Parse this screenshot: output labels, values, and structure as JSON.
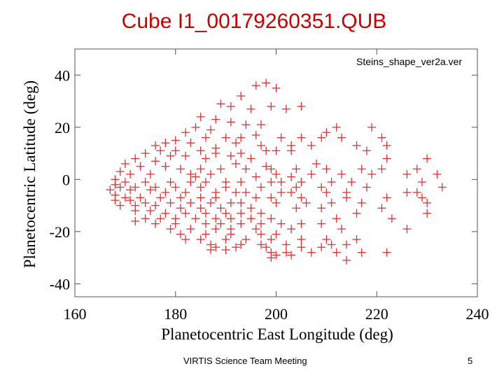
{
  "slide": {
    "title": "Cube I1_00179260351.QUB",
    "footer": "VIRTIS Science Team Meeting",
    "page_number": "5"
  },
  "chart_data": {
    "type": "scatter",
    "title": "",
    "annotation": "Steins_shape_ver2a.ver",
    "xlabel": "Planetocentric East Longitude (deg)",
    "ylabel": "Planetocentric Latitude (deg)",
    "xlim": [
      160,
      240
    ],
    "ylim": [
      -45,
      50
    ],
    "xticks": [
      160,
      180,
      200,
      220,
      240
    ],
    "yticks": [
      -40,
      -20,
      0,
      20,
      40
    ],
    "grid": false,
    "marker": "+",
    "marker_color": "#dd3333",
    "series": [
      {
        "points": [
          [
            198,
            37
          ],
          [
            196,
            36
          ],
          [
            193,
            32
          ],
          [
            200,
            35
          ],
          [
            189,
            29
          ],
          [
            191,
            28
          ],
          [
            199,
            28
          ],
          [
            205,
            28
          ],
          [
            195,
            27
          ],
          [
            202,
            27
          ],
          [
            185,
            24
          ],
          [
            188,
            23
          ],
          [
            191,
            22
          ],
          [
            194,
            21
          ],
          [
            197,
            21
          ],
          [
            184,
            20
          ],
          [
            187,
            19
          ],
          [
            212,
            20
          ],
          [
            219,
            20
          ],
          [
            210,
            18
          ],
          [
            182,
            18
          ],
          [
            186,
            16
          ],
          [
            190,
            16
          ],
          [
            193,
            16
          ],
          [
            196,
            17
          ],
          [
            201,
            16
          ],
          [
            205,
            16
          ],
          [
            209,
            16
          ],
          [
            213,
            16
          ],
          [
            221,
            16
          ],
          [
            180,
            15
          ],
          [
            183,
            14
          ],
          [
            178,
            14
          ],
          [
            176,
            13
          ],
          [
            192,
            14
          ],
          [
            197,
            13
          ],
          [
            203,
            13
          ],
          [
            207,
            13
          ],
          [
            216,
            13
          ],
          [
            222,
            13
          ],
          [
            177,
            11
          ],
          [
            180,
            11
          ],
          [
            185,
            11
          ],
          [
            188,
            10
          ],
          [
            193,
            10
          ],
          [
            198,
            11
          ],
          [
            200,
            11
          ],
          [
            203,
            11
          ],
          [
            218,
            11
          ],
          [
            188,
            12
          ],
          [
            174,
            10
          ],
          [
            179,
            9
          ],
          [
            182,
            9
          ],
          [
            191,
            9
          ],
          [
            195,
            8
          ],
          [
            222,
            8
          ],
          [
            230,
            8
          ],
          [
            186,
            8
          ],
          [
            172,
            8
          ],
          [
            176,
            7
          ],
          [
            170,
            6
          ],
          [
            173,
            5
          ],
          [
            178,
            5
          ],
          [
            181,
            4
          ],
          [
            185,
            4
          ],
          [
            189,
            4
          ],
          [
            194,
            4
          ],
          [
            199,
            4
          ],
          [
            204,
            4
          ],
          [
            210,
            4
          ],
          [
            217,
            4
          ],
          [
            221,
            4
          ],
          [
            228,
            4
          ],
          [
            192,
            6
          ],
          [
            198,
            5
          ],
          [
            208,
            6
          ],
          [
            169,
            3
          ],
          [
            171,
            2
          ],
          [
            175,
            2
          ],
          [
            184,
            1
          ],
          [
            187,
            2
          ],
          [
            196,
            1
          ],
          [
            200,
            2
          ],
          [
            203,
            1
          ],
          [
            207,
            2
          ],
          [
            213,
            2
          ],
          [
            219,
            2
          ],
          [
            226,
            2
          ],
          [
            232,
            2
          ],
          [
            183,
            2
          ],
          [
            168,
            0
          ],
          [
            170,
            -1
          ],
          [
            174,
            -1
          ],
          [
            179,
            -1
          ],
          [
            183,
            -1
          ],
          [
            186,
            -1
          ],
          [
            190,
            -1
          ],
          [
            193,
            -1
          ],
          [
            199,
            -1
          ],
          [
            201,
            -1
          ],
          [
            205,
            -1
          ],
          [
            211,
            -1
          ],
          [
            215,
            -1
          ],
          [
            229,
            -1
          ],
          [
            168,
            -2
          ],
          [
            169,
            -3
          ],
          [
            172,
            -3
          ],
          [
            176,
            -3
          ],
          [
            180,
            -3
          ],
          [
            185,
            -3
          ],
          [
            190,
            -3
          ],
          [
            197,
            -3
          ],
          [
            204,
            -3
          ],
          [
            209,
            -3
          ],
          [
            218,
            -3
          ],
          [
            233,
            -3
          ],
          [
            167,
            -4
          ],
          [
            171,
            -4
          ],
          [
            175,
            -4
          ],
          [
            178,
            -5
          ],
          [
            182,
            -5
          ],
          [
            188,
            -5
          ],
          [
            192,
            -5
          ],
          [
            194,
            -5
          ],
          [
            201,
            -5
          ],
          [
            203,
            -5
          ],
          [
            210,
            -5
          ],
          [
            214,
            -5
          ],
          [
            226,
            -5
          ],
          [
            228,
            -5
          ],
          [
            168,
            -6
          ],
          [
            170,
            -7
          ],
          [
            173,
            -7
          ],
          [
            177,
            -7
          ],
          [
            181,
            -7
          ],
          [
            185,
            -7
          ],
          [
            188,
            -7
          ],
          [
            196,
            -7
          ],
          [
            199,
            -7
          ],
          [
            205,
            -7
          ],
          [
            214,
            -7
          ],
          [
            222,
            -7
          ],
          [
            229,
            -7
          ],
          [
            168,
            -8
          ],
          [
            171,
            -8
          ],
          [
            174,
            -9
          ],
          [
            179,
            -9
          ],
          [
            183,
            -9
          ],
          [
            187,
            -9
          ],
          [
            191,
            -9
          ],
          [
            193,
            -9
          ],
          [
            200,
            -9
          ],
          [
            206,
            -9
          ],
          [
            211,
            -9
          ],
          [
            217,
            -9
          ],
          [
            230,
            -9
          ],
          [
            169,
            -10
          ],
          [
            172,
            -10
          ],
          [
            176,
            -10
          ],
          [
            181,
            -11
          ],
          [
            185,
            -11
          ],
          [
            189,
            -11
          ],
          [
            195,
            -11
          ],
          [
            204,
            -11
          ],
          [
            209,
            -11
          ],
          [
            221,
            -11
          ],
          [
            172,
            -12
          ],
          [
            175,
            -12
          ],
          [
            178,
            -13
          ],
          [
            182,
            -13
          ],
          [
            186,
            -13
          ],
          [
            190,
            -13
          ],
          [
            193,
            -13
          ],
          [
            197,
            -13
          ],
          [
            216,
            -13
          ],
          [
            230,
            -13
          ],
          [
            174,
            -15
          ],
          [
            177,
            -15
          ],
          [
            180,
            -15
          ],
          [
            184,
            -15
          ],
          [
            188,
            -15
          ],
          [
            191,
            -15
          ],
          [
            195,
            -15
          ],
          [
            199,
            -15
          ],
          [
            212,
            -15
          ],
          [
            223,
            -15
          ],
          [
            172,
            -16
          ],
          [
            176,
            -17
          ],
          [
            180,
            -17
          ],
          [
            186,
            -17
          ],
          [
            189,
            -17
          ],
          [
            193,
            -17
          ],
          [
            197,
            -17
          ],
          [
            201,
            -17
          ],
          [
            205,
            -17
          ],
          [
            209,
            -17
          ],
          [
            179,
            -19
          ],
          [
            183,
            -19
          ],
          [
            188,
            -19
          ],
          [
            191,
            -19
          ],
          [
            196,
            -19
          ],
          [
            203,
            -19
          ],
          [
            213,
            -19
          ],
          [
            226,
            -19
          ],
          [
            181,
            -21
          ],
          [
            186,
            -21
          ],
          [
            191,
            -21
          ],
          [
            197,
            -21
          ],
          [
            200,
            -21
          ],
          [
            182,
            -23
          ],
          [
            185,
            -23
          ],
          [
            190,
            -23
          ],
          [
            194,
            -23
          ],
          [
            199,
            -23
          ],
          [
            205,
            -23
          ],
          [
            210,
            -23
          ],
          [
            216,
            -23
          ],
          [
            187,
            -25
          ],
          [
            193,
            -25
          ],
          [
            197,
            -25
          ],
          [
            202,
            -25
          ],
          [
            211,
            -25
          ],
          [
            214,
            -25
          ],
          [
            188,
            -26
          ],
          [
            192,
            -26
          ],
          [
            198,
            -26
          ],
          [
            205,
            -26
          ],
          [
            209,
            -26
          ],
          [
            187,
            -27
          ],
          [
            190,
            -27
          ],
          [
            199,
            -28
          ],
          [
            202,
            -28
          ],
          [
            207,
            -28
          ],
          [
            212,
            -28
          ],
          [
            217,
            -28
          ],
          [
            222,
            -28
          ],
          [
            200,
            -29
          ],
          [
            203,
            -29
          ],
          [
            214,
            -31
          ],
          [
            199,
            -30
          ]
        ]
      }
    ]
  }
}
